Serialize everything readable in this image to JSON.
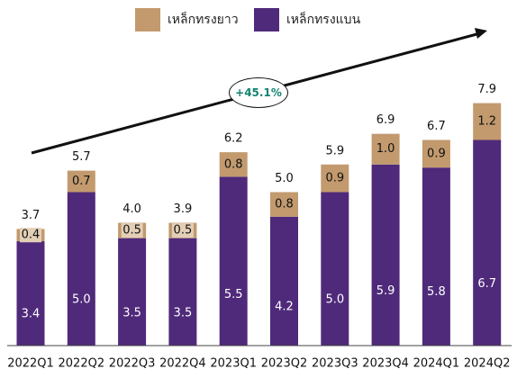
{
  "colors": {
    "long_steel": "#c29a6e",
    "flat_steel": "#4f2a7a",
    "growth_text": "#13836f",
    "segment_text_light": "#ffffff",
    "segment_text_dark": "#111111",
    "axis": "#444444"
  },
  "legend": {
    "long_label": "เหล็กทรงยาว",
    "flat_label": "เหล็กทรงแบน"
  },
  "growth_label": "+45.1%",
  "chart_data": {
    "type": "bar",
    "stacked": true,
    "categories": [
      "2022Q1",
      "2022Q2",
      "2022Q3",
      "2022Q4",
      "2023Q1",
      "2023Q2",
      "2023Q3",
      "2023Q4",
      "2024Q1",
      "2024Q2"
    ],
    "series": [
      {
        "name": "เหล็กทรงแบน",
        "values": [
          3.4,
          5.0,
          3.5,
          3.5,
          5.5,
          4.2,
          5.0,
          5.9,
          5.8,
          6.7
        ]
      },
      {
        "name": "เหล็กทรงยาว",
        "values": [
          0.4,
          0.7,
          0.5,
          0.5,
          0.8,
          0.8,
          0.9,
          1.0,
          0.9,
          1.2
        ]
      }
    ],
    "totals": [
      3.7,
      5.7,
      4.0,
      3.9,
      6.2,
      5.0,
      5.9,
      6.9,
      6.7,
      7.9
    ],
    "ylim": [
      0,
      9.5
    ],
    "grid": false,
    "legend_position": "top-center",
    "annotation": "+45.1%"
  }
}
